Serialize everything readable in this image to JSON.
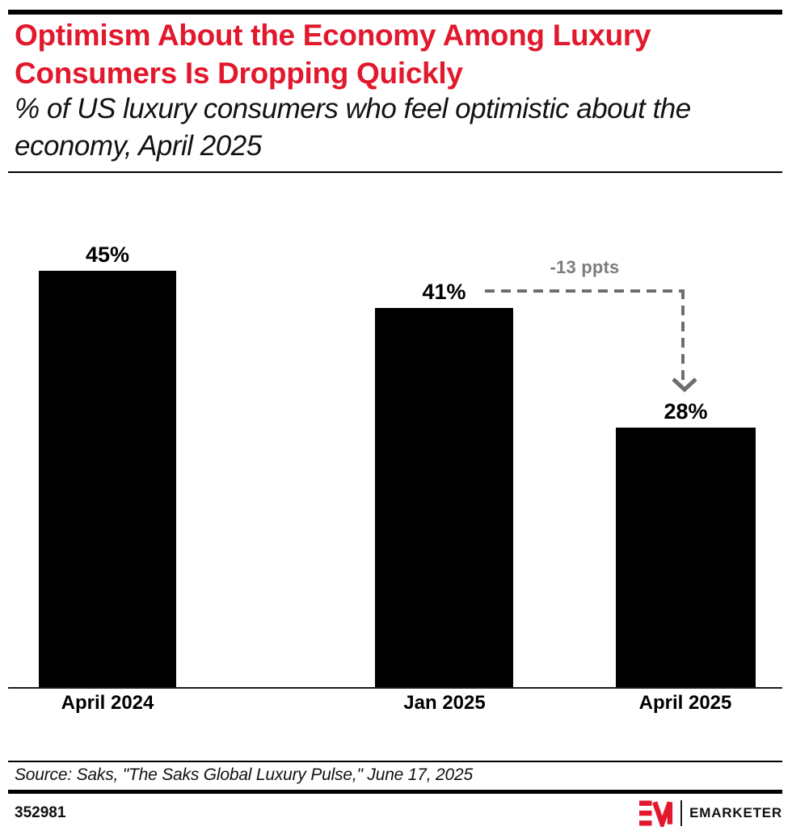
{
  "header": {
    "title": "Optimism About the Economy Among Luxury Consumers Is Dropping Quickly",
    "subtitle": "% of US luxury consumers who feel optimistic about the economy, April 2025"
  },
  "chart_data": {
    "type": "bar",
    "title": "Optimism About the Economy Among Luxury Consumers Is Dropping Quickly",
    "subtitle": "% of US luxury consumers who feel optimistic about the economy, April 2025",
    "categories": [
      "April 2024",
      "Jan 2025",
      "April 2025"
    ],
    "values": [
      45,
      41,
      28
    ],
    "value_labels": [
      "45%",
      "41%",
      "28%"
    ],
    "ylim": [
      0,
      50
    ],
    "grid": false,
    "legend": "none",
    "bar_color": "#000000",
    "annotation": {
      "text": "-13 ppts",
      "from_category": "Jan 2025",
      "to_category": "April 2025",
      "style": "dashed-elbow-arrow-down"
    }
  },
  "footer": {
    "source": "Source: Saks, \"The Saks Global Luxury Pulse,\" June 17, 2025",
    "chart_id": "352981",
    "brand_name": "EMARKETER"
  },
  "colors": {
    "accent_red": "#e2182d",
    "bar": "#000000",
    "annotation_gray": "#6e6e6e",
    "annotation_text_gray": "#7d7d7d"
  }
}
